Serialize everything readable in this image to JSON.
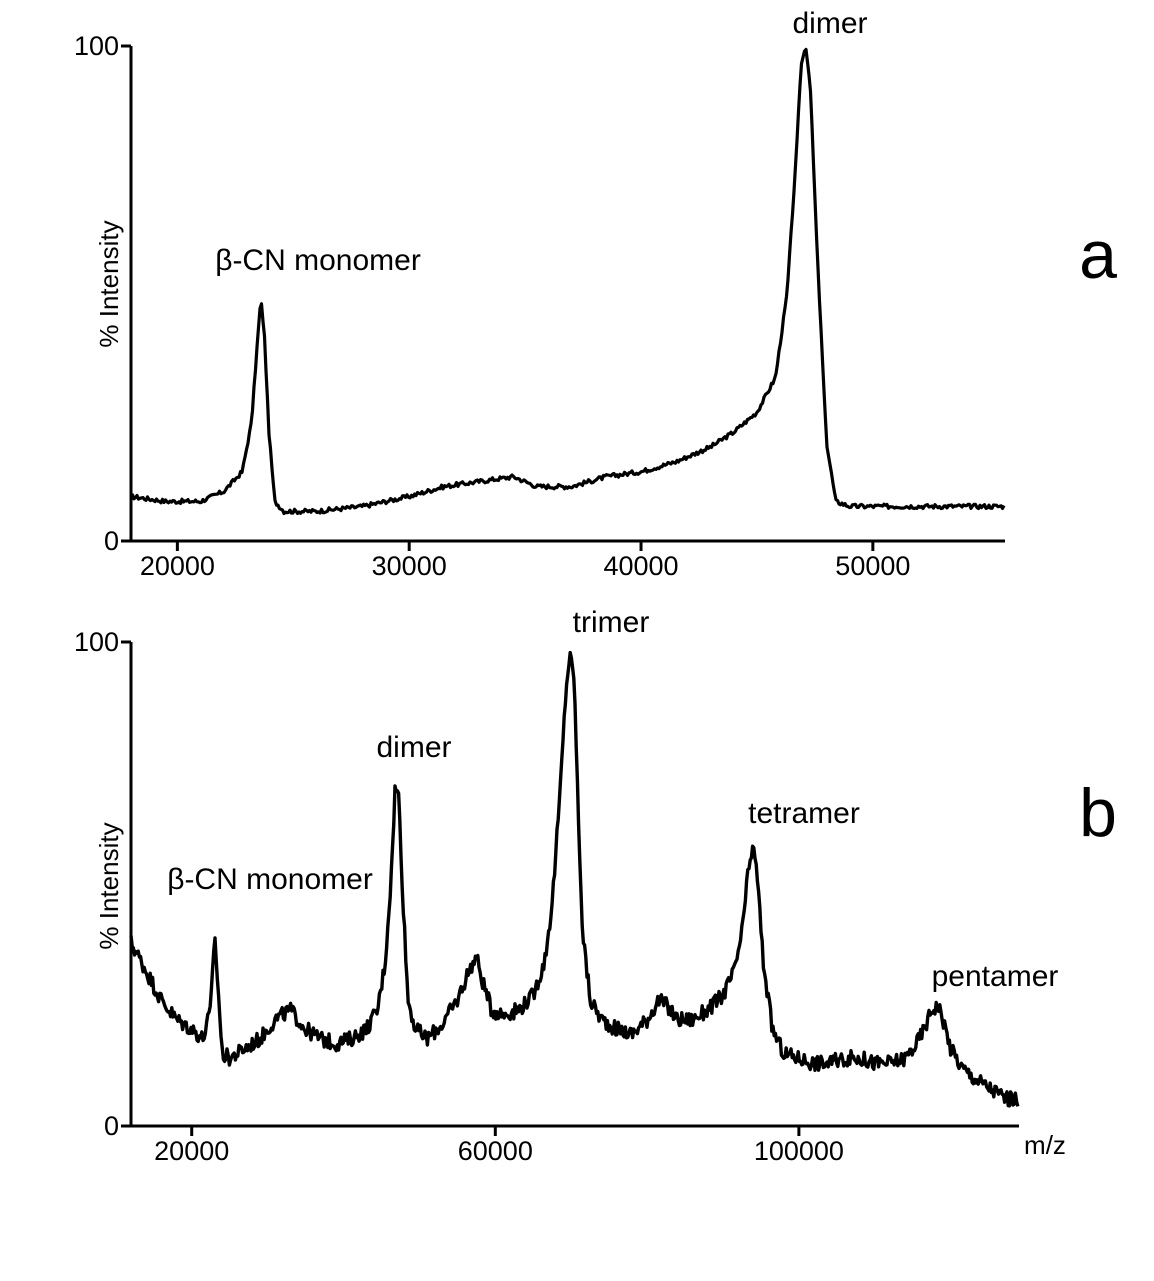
{
  "chart_data": [
    {
      "type": "line",
      "panel_label": "a",
      "ylabel": "% Intensity",
      "xlabel": "",
      "xlim": [
        18000,
        55700
      ],
      "ylim": [
        0,
        100
      ],
      "x_ticks": [
        20000,
        30000,
        40000,
        50000
      ],
      "y_tick_labels": [
        "0",
        "100"
      ],
      "grid": false,
      "annotations": [
        {
          "label": "β-CN monomer",
          "x": 23600,
          "y": 50
        },
        {
          "label": "dimer",
          "x": 47100,
          "y": 100
        }
      ],
      "series": [
        {
          "x": [
            18000,
            19500,
            21000,
            22000,
            22800,
            23200,
            23450,
            23600,
            23750,
            23950,
            24200,
            24600,
            25000,
            26000,
            28000,
            30000,
            31500,
            33000,
            34500,
            35500,
            37000,
            38500,
            40000,
            41500,
            43000,
            44000,
            45000,
            45800,
            46300,
            46700,
            46900,
            47100,
            47300,
            47600,
            48000,
            48400,
            49000,
            50000,
            52000,
            54000,
            55700
          ],
          "y": [
            9,
            8,
            8,
            10,
            14,
            24,
            40,
            49,
            42,
            22,
            8,
            6,
            6,
            6,
            7,
            9,
            11,
            12,
            13,
            11,
            11,
            13,
            14,
            16,
            19,
            22,
            26,
            33,
            50,
            78,
            96,
            100,
            92,
            58,
            20,
            8,
            7,
            7,
            7,
            7,
            7
          ]
        }
      ]
    },
    {
      "type": "line",
      "panel_label": "b",
      "ylabel": "% Intensity",
      "xlabel": "m/z",
      "xlim": [
        12000,
        129000
      ],
      "ylim": [
        0,
        100
      ],
      "x_ticks": [
        20000,
        60000,
        100000
      ],
      "y_tick_labels": [
        "0",
        "100"
      ],
      "grid": false,
      "annotations": [
        {
          "label": "β-CN monomer",
          "x": 23600,
          "y": 42
        },
        {
          "label": "dimer",
          "x": 47000,
          "y": 73
        },
        {
          "label": "trimer",
          "x": 70500,
          "y": 100
        },
        {
          "label": "tetramer",
          "x": 94000,
          "y": 60
        },
        {
          "label": "pentamer",
          "x": 118000,
          "y": 26
        }
      ],
      "series": [
        {
          "x": [
            12000,
            14000,
            16000,
            18000,
            20000,
            21500,
            22500,
            23000,
            23500,
            24000,
            25000,
            27000,
            29000,
            31000,
            33000,
            35000,
            37000,
            39000,
            41000,
            43000,
            44500,
            45500,
            46300,
            46800,
            47300,
            47800,
            48500,
            49500,
            51000,
            53000,
            55000,
            56500,
            57500,
            58300,
            59500,
            61000,
            63000,
            65000,
            66500,
            67500,
            68500,
            69300,
            69900,
            70400,
            70900,
            71500,
            72500,
            74000,
            76000,
            78000,
            80000,
            81500,
            82500,
            84000,
            86000,
            88000,
            90000,
            91500,
            92500,
            93300,
            93900,
            94500,
            95300,
            96500,
            98000,
            100000,
            102000,
            104000,
            106000,
            108000,
            110000,
            112000,
            114000,
            115500,
            116500,
            117500,
            118300,
            119000,
            120000,
            121500,
            123000,
            125000,
            127000,
            129000
          ],
          "y": [
            38,
            32,
            26,
            22,
            20,
            18,
            24,
            40,
            28,
            15,
            14,
            16,
            18,
            22,
            24,
            20,
            18,
            17,
            18,
            20,
            24,
            34,
            52,
            70,
            68,
            48,
            26,
            20,
            18,
            21,
            26,
            32,
            35,
            30,
            24,
            23,
            24,
            27,
            34,
            46,
            68,
            90,
            98,
            92,
            66,
            40,
            26,
            22,
            20,
            19,
            22,
            26,
            25,
            22,
            22,
            24,
            27,
            32,
            40,
            52,
            58,
            52,
            34,
            20,
            15,
            14,
            13,
            13,
            14,
            14,
            13,
            13,
            14,
            17,
            20,
            24,
            25,
            22,
            16,
            12,
            10,
            8,
            6,
            5
          ]
        }
      ]
    }
  ]
}
